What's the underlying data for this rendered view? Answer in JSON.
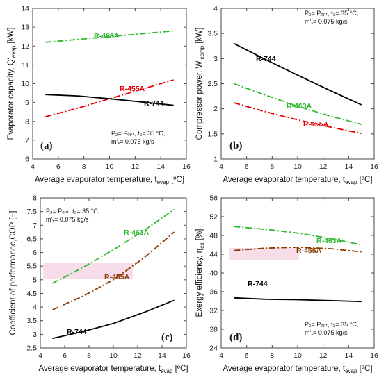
{
  "colors": {
    "R-744": "#000000",
    "R-463A": "#2eb82e",
    "R-455A_red": "#e60000",
    "R-455A_brown": "#8b3a00",
    "highlight": "#f7dcea"
  },
  "chart_data": [
    {
      "id": "a",
      "type": "line",
      "panel_label": "(a)",
      "xlabel": "Average evaporator temperature, t",
      "xlabel_sub": "evap",
      "xlabel_unit": " [ºC]",
      "ylabel": "Evaporator capacity, Q'",
      "ylabel_sub": "evap",
      "ylabel_unit": " [kW]",
      "xlim": [
        4,
        16
      ],
      "ylim": [
        6,
        14
      ],
      "xticks": [
        "4",
        "6",
        "8",
        "10",
        "12",
        "14",
        "16"
      ],
      "yticks": [
        "6",
        "7",
        "8",
        "9",
        "10",
        "11",
        "12",
        "13",
        "14"
      ],
      "annotation": [
        "P₂= Pₒₚₜ, t₃= 35 °C,",
        "m'ₓ= 0.075 kg/s"
      ],
      "series": [
        {
          "name": "R-463A",
          "color_key": "R-463A",
          "style": "dashdot",
          "x": [
            5,
            7.5,
            10,
            12.5,
            15
          ],
          "y": [
            12.2,
            12.35,
            12.5,
            12.65,
            12.8
          ]
        },
        {
          "name": "R-455A",
          "color_key": "R-455A_red",
          "style": "dashdot",
          "x": [
            5,
            7.5,
            10,
            12.5,
            15
          ],
          "y": [
            8.25,
            8.7,
            9.2,
            9.7,
            10.2
          ]
        },
        {
          "name": "R-744",
          "color_key": "R-744",
          "style": "solid",
          "x": [
            5,
            7.5,
            10,
            12.5,
            15
          ],
          "y": [
            9.42,
            9.35,
            9.2,
            9.03,
            8.85
          ]
        }
      ]
    },
    {
      "id": "b",
      "type": "line",
      "panel_label": "(b)",
      "xlabel": "Average evaporator temperature, t",
      "xlabel_sub": "evap",
      "xlabel_unit": " [ºC]",
      "ylabel": "Compressor power, W'",
      "ylabel_sub": "comp",
      "ylabel_unit": " [kW]",
      "xlim": [
        4,
        16
      ],
      "ylim": [
        1,
        4
      ],
      "xticks": [
        "4",
        "6",
        "8",
        "10",
        "12",
        "14",
        "16"
      ],
      "yticks": [
        "1",
        "1.5",
        "2",
        "2.5",
        "3",
        "3.5",
        "4"
      ],
      "annotation": [
        "P₂= Pₒₚₜ, t₃= 35 °C,",
        "m'ₓ= 0.075 kg/s"
      ],
      "series": [
        {
          "name": "R-744",
          "color_key": "R-744",
          "style": "solid",
          "x": [
            5,
            7.5,
            10,
            12.5,
            15
          ],
          "y": [
            3.3,
            2.98,
            2.67,
            2.37,
            2.08
          ]
        },
        {
          "name": "R-463A",
          "color_key": "R-463A",
          "style": "dashdot",
          "x": [
            5,
            7.5,
            10,
            12.5,
            15
          ],
          "y": [
            2.5,
            2.27,
            2.05,
            1.86,
            1.69
          ]
        },
        {
          "name": "R-455A",
          "color_key": "R-455A_red",
          "style": "dashdot",
          "x": [
            5,
            7.5,
            10,
            12.5,
            15
          ],
          "y": [
            2.12,
            1.94,
            1.78,
            1.64,
            1.51
          ]
        }
      ]
    },
    {
      "id": "c",
      "type": "line",
      "panel_label": "(c)",
      "xlabel": "Average evaporator temperature, t",
      "xlabel_sub": "evap",
      "xlabel_unit": " [ºC]",
      "ylabel": "Coefficient of performance,COP [−]",
      "ylabel_sub": "",
      "ylabel_unit": "",
      "xlim": [
        4,
        16
      ],
      "ylim": [
        2.5,
        8
      ],
      "xticks": [
        "4",
        "6",
        "8",
        "10",
        "12",
        "14",
        "16"
      ],
      "yticks": [
        "2.5",
        "3",
        "3.5",
        "4",
        "4.5",
        "5",
        "5.5",
        "6",
        "6.5",
        "7",
        "7.5",
        "8"
      ],
      "annotation": [
        "P₂= Pₒₚₜ, t₃= 35 °C,",
        "m'ₓ= 0.075 kg/s"
      ],
      "series": [
        {
          "name": "R-463A",
          "color_key": "R-463A",
          "style": "dashdot",
          "x": [
            5,
            7.5,
            10,
            12.5,
            15
          ],
          "y": [
            4.87,
            5.45,
            6.1,
            6.8,
            7.58
          ]
        },
        {
          "name": "R-455A",
          "color_key": "R-455A_brown",
          "style": "dashdot",
          "x": [
            5,
            7.5,
            10,
            12.5,
            15
          ],
          "y": [
            3.9,
            4.4,
            5.0,
            5.8,
            6.75
          ]
        },
        {
          "name": "R-744",
          "color_key": "R-744",
          "style": "solid",
          "x": [
            5,
            7.5,
            10,
            12.5,
            15
          ],
          "y": [
            2.85,
            3.1,
            3.4,
            3.8,
            4.25
          ]
        }
      ]
    },
    {
      "id": "d",
      "type": "line",
      "panel_label": "(d)",
      "xlabel": "Average evaporator temperature, t",
      "xlabel_sub": "evap",
      "xlabel_unit": " [ºC]",
      "ylabel": "Exergy efficiency, η",
      "ylabel_sub": "ex",
      "ylabel_unit": " [%]",
      "xlim": [
        4,
        16
      ],
      "ylim": [
        24,
        56
      ],
      "xticks": [
        "4",
        "6",
        "8",
        "10",
        "12",
        "14",
        "16"
      ],
      "yticks": [
        "24",
        "28",
        "32",
        "36",
        "40",
        "44",
        "48",
        "52",
        "56"
      ],
      "annotation": [
        "P₂= Pₒₚₜ, t₃= 35 °C,",
        "m'ₓ= 0.075 kg/s"
      ],
      "series": [
        {
          "name": "R-463A",
          "color_key": "R-463A",
          "style": "dashdot",
          "x": [
            5,
            7.5,
            10,
            12.5,
            15
          ],
          "y": [
            49.9,
            49.3,
            48.5,
            47.4,
            46.0
          ]
        },
        {
          "name": "R-455A",
          "color_key": "R-455A_brown",
          "style": "dashdot",
          "x": [
            5,
            7.5,
            10,
            12.5,
            15
          ],
          "y": [
            44.8,
            45.3,
            45.5,
            45.2,
            44.5
          ]
        },
        {
          "name": "R-744",
          "color_key": "R-744",
          "style": "solid",
          "x": [
            5,
            7.5,
            10,
            12.5,
            15
          ],
          "y": [
            34.7,
            34.4,
            34.3,
            34.1,
            33.9
          ]
        }
      ]
    }
  ]
}
